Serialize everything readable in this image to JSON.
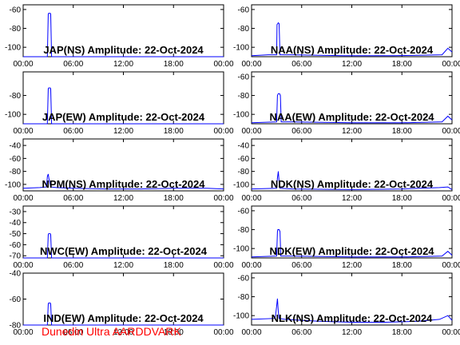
{
  "footer": {
    "text": "Dunedin Ultra AARDDVARK"
  },
  "colors": {
    "series": "#0000ff",
    "footer": "#ff0000",
    "frame": "#000000"
  },
  "chart_data": [
    {
      "type": "line",
      "title": "JAP(NS) Amplitude: 22-Oct-2024",
      "x_tick_labels": [
        "00:00",
        "06:00",
        "12:00",
        "18:00",
        "00:00"
      ],
      "xlim": [
        0,
        24
      ],
      "ylim": [
        -110,
        -55
      ],
      "y_ticks": [
        -100,
        -80,
        -60
      ],
      "series": [
        {
          "x": [
            0,
            2.9,
            3.0,
            3.05,
            3.25,
            3.3,
            3.4,
            24
          ],
          "y": [
            -110,
            -110,
            -65,
            -64,
            -64,
            -65,
            -110,
            -110
          ]
        }
      ]
    },
    {
      "type": "line",
      "title": "NAA(NS) Amplitude: 22-Oct-2024",
      "x_tick_labels": [
        "00:00",
        "06:00",
        "12:00",
        "18:00",
        "00:00"
      ],
      "xlim": [
        0,
        24
      ],
      "ylim": [
        -110,
        -55
      ],
      "y_ticks": [
        -100,
        -80,
        -60
      ],
      "series": [
        {
          "x": [
            0,
            2.0,
            3.0,
            3.05,
            3.2,
            3.3,
            3.4,
            5.0,
            11.0,
            17.0,
            22.8,
            23.5,
            24
          ],
          "y": [
            -109,
            -108,
            -108,
            -76,
            -74,
            -75,
            -108,
            -108,
            -109,
            -109,
            -108,
            -101,
            -105
          ]
        }
      ]
    },
    {
      "type": "line",
      "title": "JAP(EW) Amplitude: 22-Oct-2024",
      "x_tick_labels": [
        "00:00",
        "06:00",
        "12:00",
        "18:00",
        "00:00"
      ],
      "xlim": [
        0,
        24
      ],
      "ylim": [
        -110,
        -55
      ],
      "y_ticks": [
        -100,
        -80
      ],
      "series": [
        {
          "x": [
            0,
            2.9,
            3.0,
            3.05,
            3.25,
            3.3,
            3.4,
            24
          ],
          "y": [
            -110,
            -110,
            -73,
            -72,
            -72,
            -73,
            -110,
            -110
          ]
        }
      ]
    },
    {
      "type": "line",
      "title": "NAA(EW) Amplitude: 22-Oct-2024",
      "x_tick_labels": [
        "00:00",
        "06:00",
        "12:00",
        "18:00",
        "00:00"
      ],
      "xlim": [
        0,
        24
      ],
      "ylim": [
        -110,
        -55
      ],
      "y_ticks": [
        -100,
        -80,
        -60
      ],
      "series": [
        {
          "x": [
            0,
            3.0,
            3.1,
            3.2,
            3.35,
            3.45,
            3.55,
            5.0,
            12.0,
            18.0,
            22.8,
            23.5,
            24
          ],
          "y": [
            -109,
            -108,
            -80,
            -78,
            -78,
            -80,
            -108,
            -108,
            -109,
            -109,
            -108,
            -102,
            -106
          ]
        }
      ]
    },
    {
      "type": "line",
      "title": "NPM(NS) Amplitude: 22-Oct-2024",
      "x_tick_labels": [
        "00:00",
        "06:00",
        "12:00",
        "18:00",
        "00:00"
      ],
      "xlim": [
        0,
        24
      ],
      "ylim": [
        -110,
        -30
      ],
      "y_ticks": [
        -100,
        -80,
        -60,
        -40
      ],
      "series": [
        {
          "x": [
            0,
            2.0,
            2.8,
            2.9,
            3.0,
            3.1,
            3.3,
            4.0,
            6.0,
            10.0,
            14.0,
            18.0,
            22.0,
            24
          ],
          "y": [
            -106,
            -105,
            -104,
            -88,
            -84,
            -92,
            -104,
            -105,
            -106,
            -107,
            -107,
            -106,
            -106,
            -107
          ]
        }
      ]
    },
    {
      "type": "line",
      "title": "NDK(NS) Amplitude: 22-Oct-2024",
      "x_tick_labels": [
        "00:00",
        "06:00",
        "12:00",
        "18:00",
        "00:00"
      ],
      "xlim": [
        0,
        24
      ],
      "ylim": [
        -110,
        -30
      ],
      "y_ticks": [
        -100,
        -80,
        -60,
        -40
      ],
      "series": [
        {
          "x": [
            0,
            3.0,
            3.1,
            3.2,
            3.3,
            3.4,
            5.0,
            12.0,
            18.0,
            22.5,
            23.5,
            24
          ],
          "y": [
            -107,
            -106,
            -90,
            -80,
            -96,
            -106,
            -107,
            -108,
            -107,
            -105,
            -104,
            -108
          ]
        }
      ]
    },
    {
      "type": "line",
      "title": "NWC(EW) Amplitude: 22-Oct-2024",
      "x_tick_labels": [
        "00:00",
        "06:00",
        "12:00",
        "18:00",
        "00:00"
      ],
      "xlim": [
        0,
        24
      ],
      "ylim": [
        -72,
        -25
      ],
      "y_ticks": [
        -70,
        -60,
        -50,
        -40,
        -30
      ],
      "series": [
        {
          "x": [
            0,
            2.9,
            3.0,
            3.05,
            3.25,
            3.3,
            3.4,
            24
          ],
          "y": [
            -72,
            -72,
            -51,
            -50,
            -50,
            -51,
            -72,
            -72
          ]
        }
      ]
    },
    {
      "type": "line",
      "title": "NDK(EW) Amplitude: 22-Oct-2024",
      "x_tick_labels": [
        "00:00",
        "06:00",
        "12:00",
        "18:00",
        "00:00"
      ],
      "xlim": [
        0,
        24
      ],
      "ylim": [
        -110,
        -55
      ],
      "y_ticks": [
        -100,
        -80,
        -60
      ],
      "series": [
        {
          "x": [
            0,
            3.0,
            3.1,
            3.15,
            3.3,
            3.4,
            3.5,
            5.0,
            12.0,
            18.0,
            22.8,
            23.5,
            24
          ],
          "y": [
            -109,
            -108,
            -82,
            -80,
            -80,
            -82,
            -108,
            -108,
            -109,
            -109,
            -108,
            -103,
            -107
          ]
        }
      ]
    },
    {
      "type": "line",
      "title": "IND(EW) Amplitude: 22-Oct-2024",
      "x_tick_labels": [
        "00:00",
        "06:00",
        "12:00",
        "18:00",
        "00:00"
      ],
      "xlim": [
        0,
        24
      ],
      "ylim": [
        -80,
        -40
      ],
      "y_ticks": [
        -80,
        -60,
        -40
      ],
      "series": [
        {
          "x": [
            0,
            2.9,
            3.0,
            3.05,
            3.25,
            3.3,
            3.4,
            24
          ],
          "y": [
            -80,
            -80,
            -64,
            -63,
            -63,
            -64,
            -80,
            -80
          ]
        }
      ]
    },
    {
      "type": "line",
      "title": "NLK(NS) Amplitude: 22-Oct-2024",
      "x_tick_labels": [
        "00:00",
        "06:00",
        "12:00",
        "18:00",
        "00:00"
      ],
      "xlim": [
        0,
        24
      ],
      "ylim": [
        -110,
        -55
      ],
      "y_ticks": [
        -100,
        -80,
        -60
      ],
      "series": [
        {
          "x": [
            0,
            2.8,
            2.9,
            3.0,
            3.1,
            3.2,
            3.3,
            4.0,
            8.0,
            12.0,
            16.0,
            20.0,
            22.5,
            23.5,
            24
          ],
          "y": [
            -104,
            -103,
            -98,
            -90,
            -82,
            -96,
            -103,
            -104,
            -106,
            -107,
            -107,
            -106,
            -104,
            -100,
            -105
          ]
        }
      ]
    }
  ]
}
